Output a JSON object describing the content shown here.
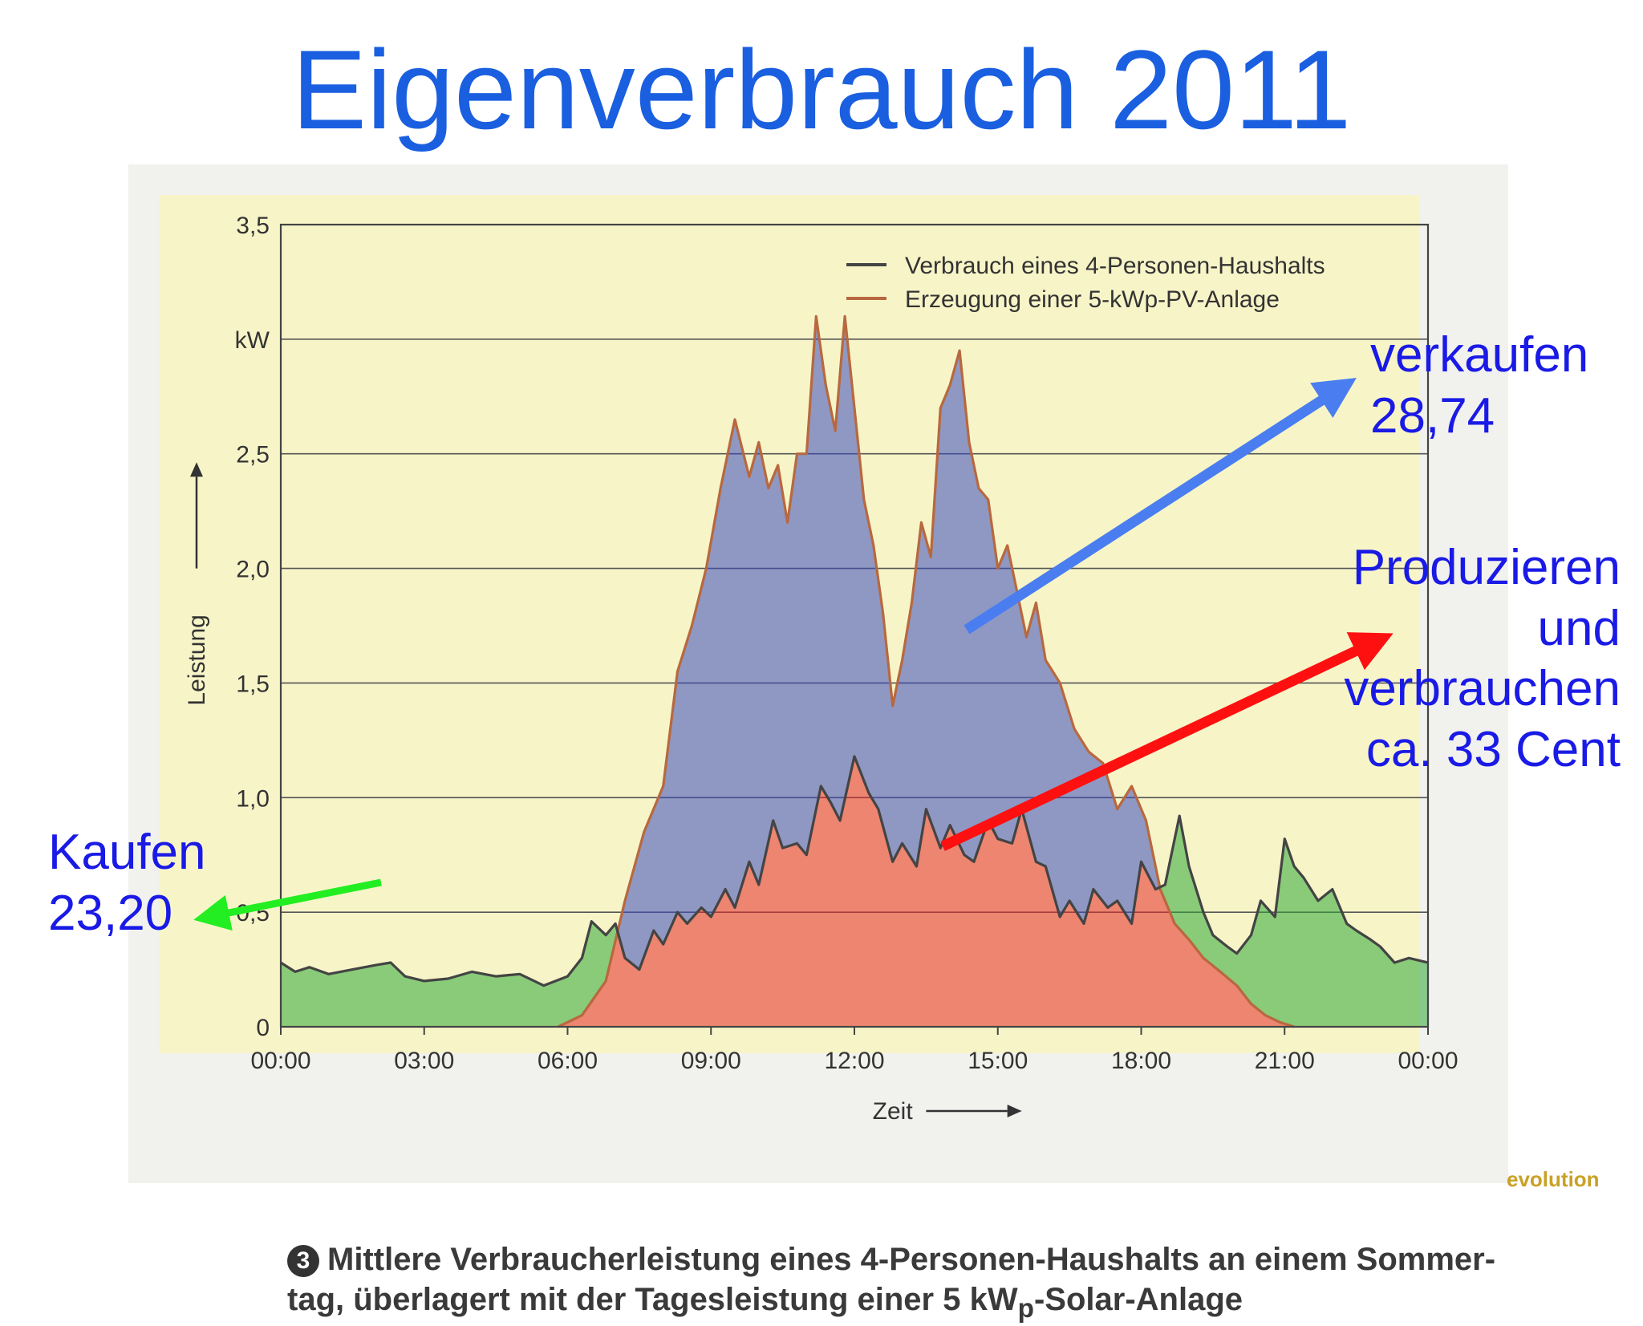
{
  "slide": {
    "title": "Eigenverbrauch 2011"
  },
  "annotations": {
    "buy": [
      "Kaufen",
      "23,20"
    ],
    "sell": [
      "verkaufen",
      "28,74"
    ],
    "self": [
      "Produzieren",
      "und",
      "verbrauchen",
      "ca. 33 Cent"
    ]
  },
  "caption": {
    "number": "3",
    "line1": "Mittlere Verbraucherleistung eines 4-Personen-Haushalts an einem Sommer-",
    "line2_a": "tag, überlagert mit der Tagesleistung einer 5 kW",
    "line2_sub": "p",
    "line2_b": "-Solar-Anlage"
  },
  "footer": {
    "logo": "evolution"
  },
  "colors": {
    "title": "#1a5fe0",
    "annotation_text": "#1a1ae6",
    "chart_panel": "#f7f5c8",
    "consumption_line": "#444444",
    "production_line": "#b8683f",
    "buy_fill": "#2fa838",
    "self_fill": "#e52828",
    "sell_fill": "#3a4bc0",
    "arrow_buy": "#22ee22",
    "arrow_sell": "#4a7ef0",
    "arrow_self": "#ff1010"
  },
  "chart_data": {
    "type": "line",
    "xlabel": "Zeit",
    "ylabel": "Leistung",
    "yunit": "kW",
    "xlim": [
      0,
      24
    ],
    "ylim": [
      0,
      3.5
    ],
    "grid": true,
    "legend_position": "top-right",
    "x_ticks": [
      {
        "v": 0,
        "label": "00:00"
      },
      {
        "v": 3,
        "label": "03:00"
      },
      {
        "v": 6,
        "label": "06:00"
      },
      {
        "v": 9,
        "label": "09:00"
      },
      {
        "v": 12,
        "label": "12:00"
      },
      {
        "v": 15,
        "label": "15:00"
      },
      {
        "v": 18,
        "label": "18:00"
      },
      {
        "v": 21,
        "label": "21:00"
      },
      {
        "v": 24,
        "label": "00:00"
      }
    ],
    "y_ticks": [
      {
        "v": 0,
        "label": "0"
      },
      {
        "v": 0.5,
        "label": "0,5"
      },
      {
        "v": 1.0,
        "label": "1,0"
      },
      {
        "v": 1.5,
        "label": "1,5"
      },
      {
        "v": 2.0,
        "label": "2,0"
      },
      {
        "v": 2.5,
        "label": "2,5"
      },
      {
        "v": 3.0,
        "label": "kW"
      },
      {
        "v": 3.5,
        "label": "3,5"
      }
    ],
    "series": [
      {
        "name": "Verbrauch eines 4-Personen-Haushalts",
        "color": "#444444",
        "x": [
          0,
          0.3,
          0.6,
          1,
          1.5,
          2,
          2.3,
          2.6,
          3,
          3.5,
          4,
          4.5,
          5,
          5.5,
          6,
          6.3,
          6.5,
          6.8,
          7,
          7.2,
          7.5,
          7.8,
          8,
          8.3,
          8.5,
          8.8,
          9,
          9.3,
          9.5,
          9.8,
          10,
          10.3,
          10.5,
          10.8,
          11,
          11.3,
          11.5,
          11.7,
          12,
          12.3,
          12.5,
          12.8,
          13,
          13.3,
          13.5,
          13.8,
          14,
          14.3,
          14.5,
          14.8,
          15,
          15.3,
          15.5,
          15.8,
          16,
          16.3,
          16.5,
          16.8,
          17,
          17.3,
          17.5,
          17.8,
          18,
          18.3,
          18.5,
          18.8,
          19,
          19.3,
          19.5,
          19.8,
          20,
          20.3,
          20.5,
          20.8,
          21,
          21.2,
          21.4,
          21.7,
          22,
          22.3,
          22.5,
          22.8,
          23,
          23.3,
          23.6,
          24
        ],
        "y": [
          0.28,
          0.24,
          0.26,
          0.23,
          0.25,
          0.27,
          0.28,
          0.22,
          0.2,
          0.21,
          0.24,
          0.22,
          0.23,
          0.18,
          0.22,
          0.3,
          0.46,
          0.4,
          0.45,
          0.3,
          0.25,
          0.42,
          0.36,
          0.5,
          0.45,
          0.52,
          0.48,
          0.6,
          0.52,
          0.72,
          0.62,
          0.9,
          0.78,
          0.8,
          0.75,
          1.05,
          0.98,
          0.9,
          1.18,
          1.02,
          0.95,
          0.72,
          0.8,
          0.7,
          0.95,
          0.78,
          0.88,
          0.75,
          0.72,
          0.9,
          0.82,
          0.8,
          0.95,
          0.72,
          0.7,
          0.48,
          0.55,
          0.45,
          0.6,
          0.52,
          0.55,
          0.45,
          0.72,
          0.6,
          0.62,
          0.92,
          0.7,
          0.5,
          0.4,
          0.35,
          0.32,
          0.4,
          0.55,
          0.48,
          0.82,
          0.7,
          0.65,
          0.55,
          0.6,
          0.45,
          0.42,
          0.38,
          0.35,
          0.28,
          0.3,
          0.28
        ]
      },
      {
        "name": "Erzeugung einer 5-kWp-PV-Anlage",
        "color": "#b8683f",
        "x": [
          5.8,
          6.3,
          6.8,
          7.2,
          7.6,
          8,
          8.3,
          8.6,
          8.9,
          9.2,
          9.5,
          9.8,
          10,
          10.2,
          10.4,
          10.6,
          10.8,
          11,
          11.2,
          11.4,
          11.6,
          11.8,
          12,
          12.2,
          12.4,
          12.6,
          12.8,
          13,
          13.2,
          13.4,
          13.6,
          13.8,
          14,
          14.2,
          14.4,
          14.6,
          14.8,
          15,
          15.2,
          15.4,
          15.6,
          15.8,
          16,
          16.3,
          16.6,
          16.9,
          17.2,
          17.5,
          17.8,
          18.1,
          18.4,
          18.7,
          19,
          19.3,
          19.6,
          20,
          20.3,
          20.6,
          20.9,
          21.2
        ],
        "y": [
          0,
          0.05,
          0.2,
          0.55,
          0.85,
          1.05,
          1.55,
          1.75,
          2.0,
          2.35,
          2.65,
          2.4,
          2.55,
          2.35,
          2.45,
          2.2,
          2.5,
          2.5,
          3.1,
          2.8,
          2.6,
          3.1,
          2.7,
          2.3,
          2.1,
          1.8,
          1.4,
          1.6,
          1.85,
          2.2,
          2.05,
          2.7,
          2.8,
          2.95,
          2.55,
          2.35,
          2.3,
          2.0,
          2.1,
          1.9,
          1.7,
          1.85,
          1.6,
          1.5,
          1.3,
          1.2,
          1.15,
          0.95,
          1.05,
          0.9,
          0.6,
          0.45,
          0.38,
          0.3,
          0.25,
          0.18,
          0.1,
          0.05,
          0.02,
          0
        ]
      }
    ]
  }
}
